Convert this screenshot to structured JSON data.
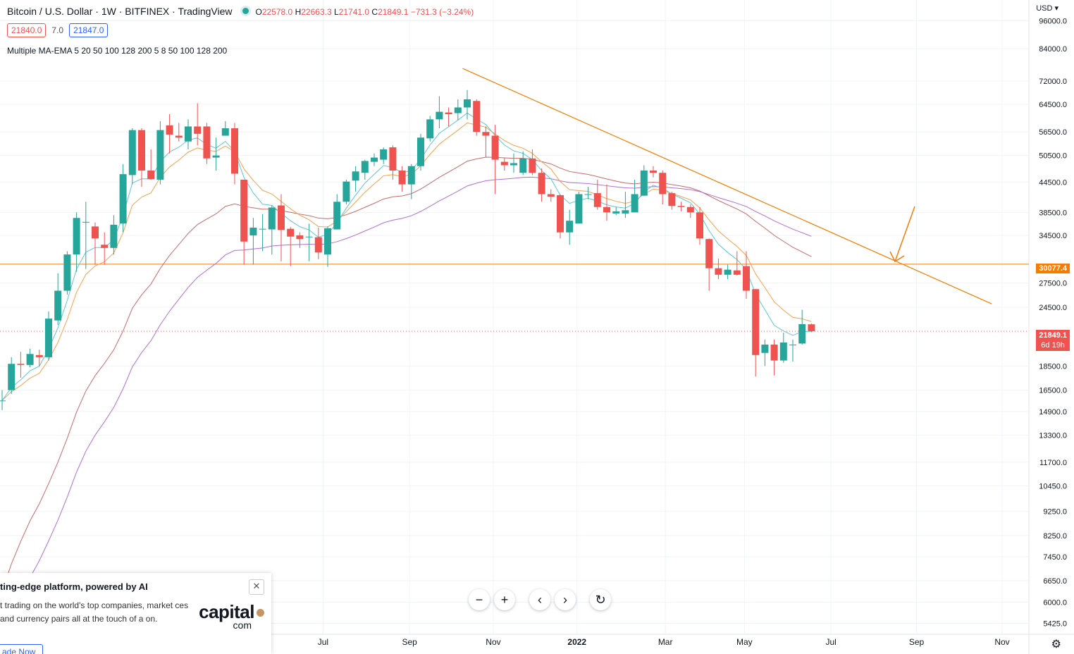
{
  "legend": {
    "symbol": "Bitcoin / U.S. Dollar · 1W · BITFINEX · TradingView",
    "ohlc": {
      "o_label": "O",
      "o": "22578.0",
      "h_label": "H",
      "h": "22663.3",
      "l_label": "L",
      "l": "21741.0",
      "c_label": "C",
      "c": "21849.1",
      "change": "−731.3 (−3.24%)"
    },
    "bid": "21840.0",
    "spread": "7.0",
    "ask": "21847.0",
    "indicator": "Multiple MA-EMA 5 20 50 100 128 200 5 8 50 100 128 200"
  },
  "axis": {
    "currency": "USD",
    "resistance_label": "30077.4",
    "last_label": "21849.1",
    "countdown": "6d 19h"
  },
  "colors": {
    "up": "#26a69a",
    "down": "#ef5350",
    "ema_fast": "#5bc8d6",
    "ema_8": "#f7a04b",
    "ma_red": "#c96a6a",
    "ma_purple": "#b06fd6",
    "trendline": "#f57c00"
  },
  "nav": {
    "zoom_out": "−",
    "zoom_in": "+",
    "scroll_left": "‹",
    "scroll_right": "›",
    "reset": "↻"
  },
  "ad": {
    "title": "ting-edge platform, powered by AI",
    "body": "t trading on the world's top companies, market ces and currency pairs all at the touch of a on.",
    "logo": "capital",
    "logo_sub": "com",
    "cta": "ade Now",
    "close": "✕"
  },
  "chart_data": {
    "type": "candlestick",
    "title": "Bitcoin / U.S. Dollar · 1W · BITFINEX",
    "x_ticks": [
      "Jul",
      "Sep",
      "Nov",
      "2022",
      "Mar",
      "May",
      "Jul",
      "Sep",
      "Nov"
    ],
    "y_scale": "log",
    "y_ticks": [
      96000,
      84000,
      72000,
      64500,
      56500,
      50500,
      44500,
      38500,
      34500,
      27500,
      24500,
      18500,
      16500,
      14900,
      13300,
      11700,
      10450,
      9250,
      8250,
      7450,
      6650,
      6000,
      5425
    ],
    "ylim": [
      5150,
      106000
    ],
    "horizontal_line": 30077.4,
    "last_price": 21849.1,
    "candles": [
      [
        15700,
        15700,
        15000,
        16500
      ],
      [
        16500,
        18700,
        16200,
        19300
      ],
      [
        18700,
        18600,
        17500,
        19800
      ],
      [
        18600,
        19600,
        18400,
        20100
      ],
      [
        19500,
        19300,
        18500,
        20000
      ],
      [
        19300,
        23200,
        19000,
        24000
      ],
      [
        23000,
        26500,
        22500,
        28800
      ],
      [
        26500,
        31500,
        26000,
        32000
      ],
      [
        31500,
        37500,
        29000,
        38500
      ],
      [
        36800,
        36800,
        29400,
        40500
      ],
      [
        36000,
        34000,
        30000,
        36700
      ],
      [
        33000,
        32500,
        30000,
        35000
      ],
      [
        32500,
        36300,
        31500,
        38000
      ],
      [
        36500,
        46200,
        35000,
        48500
      ],
      [
        46000,
        57000,
        44000,
        57500
      ],
      [
        57000,
        47000,
        43500,
        57500
      ],
      [
        47000,
        45100,
        45000,
        52000
      ],
      [
        45000,
        57000,
        44000,
        59500
      ],
      [
        58300,
        55800,
        51000,
        61500
      ],
      [
        55500,
        55000,
        54000,
        59000
      ],
      [
        54000,
        58000,
        52000,
        60000
      ],
      [
        58000,
        56000,
        53000,
        64800
      ],
      [
        58000,
        49800,
        48500,
        59000
      ],
      [
        50000,
        50500,
        47000,
        55000
      ],
      [
        55500,
        57500,
        56000,
        59500
      ],
      [
        57500,
        46300,
        44000,
        59000
      ],
      [
        45000,
        33500,
        30000,
        45000
      ],
      [
        34500,
        35800,
        30000,
        37500
      ],
      [
        35500,
        35600,
        32000,
        38200
      ],
      [
        35500,
        39400,
        31500,
        39800
      ],
      [
        39800,
        35400,
        30500,
        42000
      ],
      [
        35600,
        34300,
        29800,
        35900
      ],
      [
        34500,
        33900,
        32500,
        35000
      ],
      [
        34300,
        34300,
        30500,
        36500
      ],
      [
        34200,
        31800,
        30800,
        35800
      ],
      [
        31500,
        35700,
        29700,
        36000
      ],
      [
        35500,
        40500,
        35500,
        42000
      ],
      [
        40500,
        44600,
        40000,
        45000
      ],
      [
        44800,
        46800,
        42500,
        48000
      ],
      [
        46500,
        49200,
        45000,
        49500
      ],
      [
        49000,
        50000,
        48000,
        51000
      ],
      [
        49500,
        52000,
        48500,
        52500
      ],
      [
        52500,
        47000,
        45000,
        53000
      ],
      [
        47000,
        44000,
        42500,
        48000
      ],
      [
        44000,
        48000,
        41000,
        48500
      ],
      [
        48000,
        55000,
        47000,
        56000
      ],
      [
        54800,
        60000,
        54000,
        61000
      ],
      [
        60000,
        62200,
        57500,
        67000
      ],
      [
        62000,
        61500,
        58000,
        63500
      ],
      [
        61800,
        63500,
        59800,
        66000
      ],
      [
        63500,
        66000,
        60000,
        69000
      ],
      [
        65500,
        56500,
        55500,
        66000
      ],
      [
        56500,
        55500,
        50000,
        58000
      ],
      [
        55500,
        49500,
        42000,
        58500
      ],
      [
        49000,
        48200,
        47000,
        50000
      ],
      [
        48200,
        48700,
        46500,
        51000
      ],
      [
        46500,
        49800,
        46000,
        51500
      ],
      [
        49800,
        46500,
        46000,
        52000
      ],
      [
        46500,
        42000,
        40500,
        47500
      ],
      [
        42000,
        41500,
        40500,
        43000
      ],
      [
        41800,
        35000,
        34000,
        42000
      ],
      [
        35000,
        37000,
        33000,
        39000
      ],
      [
        36500,
        42000,
        36500,
        42500
      ],
      [
        42000,
        42000,
        41000,
        43500
      ],
      [
        42200,
        39500,
        39000,
        45000
      ],
      [
        39500,
        38500,
        37000,
        44000
      ],
      [
        38300,
        38700,
        38000,
        39500
      ],
      [
        38300,
        38900,
        37500,
        42500
      ],
      [
        38500,
        42000,
        38500,
        45000
      ],
      [
        41700,
        47000,
        41600,
        48200
      ],
      [
        47000,
        46500,
        45500,
        48000
      ],
      [
        46500,
        42000,
        40000,
        47000
      ],
      [
        42200,
        39700,
        39000,
        42500
      ],
      [
        39700,
        39500,
        38700,
        40500
      ],
      [
        39500,
        38500,
        37500,
        40000
      ],
      [
        38500,
        34000,
        33000,
        39500
      ],
      [
        33900,
        29500,
        26500,
        34000
      ],
      [
        29500,
        28600,
        28000,
        30900
      ],
      [
        28600,
        29300,
        28000,
        30000
      ],
      [
        29200,
        28600,
        28500,
        32000
      ],
      [
        29800,
        26500,
        25500,
        32000
      ],
      [
        26700,
        19500,
        17600,
        26700
      ],
      [
        19700,
        20500,
        18500,
        21000
      ],
      [
        20500,
        19000,
        17700,
        21000
      ],
      [
        19000,
        20700,
        18800,
        21700
      ],
      [
        20500,
        20500,
        18900,
        21000
      ],
      [
        20600,
        22600,
        20500,
        24200
      ],
      [
        22578,
        21849.1,
        21741,
        22663.3
      ]
    ],
    "moving_averages": [
      "EMA 5",
      "EMA 8",
      "MA 50",
      "MA 100"
    ],
    "trendline_note": "descending resistance line from Nov 2021 high",
    "arrow_note": "orange arrow pointing to trendline near 30077.4"
  }
}
